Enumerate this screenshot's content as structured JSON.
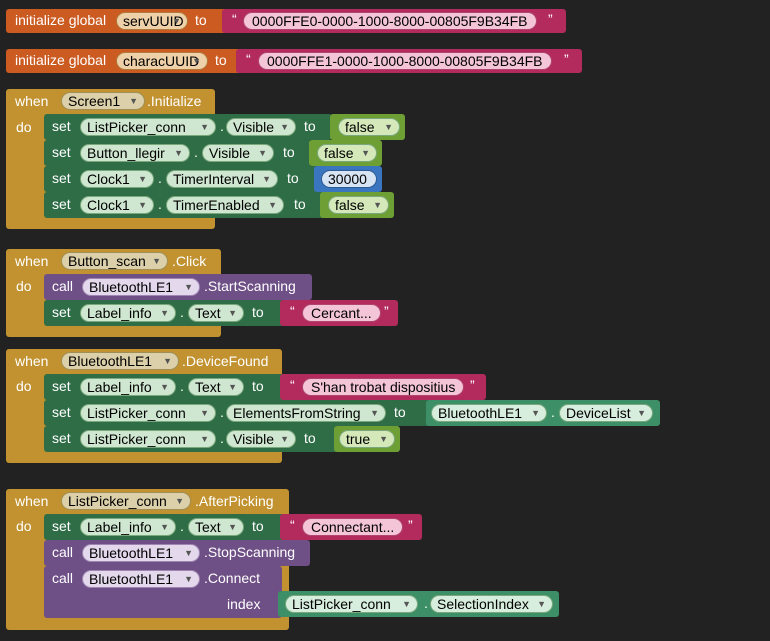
{
  "globals": [
    {
      "keyword": "initialize global",
      "name": "servUUID",
      "to": "to",
      "value": "0000FFE0-0000-1000-8000-00805F9B34FB"
    },
    {
      "keyword": "initialize global",
      "name": "characUUID",
      "to": "to",
      "value": "0000FFE1-0000-1000-8000-00805F9B34FB"
    }
  ],
  "kw": {
    "when": "when",
    "do": "do",
    "set": "set",
    "call": "call",
    "to": "to",
    "dot": ".",
    "index": "index",
    "open_quote": "“",
    "close_quote": "”"
  },
  "events": [
    {
      "component": "Screen1",
      "event": ".Initialize",
      "statements": [
        {
          "component": "ListPicker_conn",
          "prop": "Visible",
          "value": "false"
        },
        {
          "component": "Button_llegir",
          "prop": "Visible",
          "value": "false"
        },
        {
          "component": "Clock1",
          "prop": "TimerInterval",
          "value": "30000"
        },
        {
          "component": "Clock1",
          "prop": "TimerEnabled",
          "value": "false"
        }
      ]
    },
    {
      "component": "Button_scan",
      "event": ".Click",
      "statements": [
        {
          "call_component": "BluetoothLE1",
          "method": ".StartScanning"
        },
        {
          "component": "Label_info",
          "prop": "Text",
          "value": "Cercant..."
        }
      ]
    },
    {
      "component": "BluetoothLE1",
      "event": ".DeviceFound",
      "statements": [
        {
          "component": "Label_info",
          "prop": "Text",
          "value": "S'han trobat dispositius"
        },
        {
          "component": "ListPicker_conn",
          "prop": "ElementsFromString",
          "value_component": "BluetoothLE1",
          "value_prop": "DeviceList"
        },
        {
          "component": "ListPicker_conn",
          "prop": "Visible",
          "value": "true"
        }
      ]
    },
    {
      "component": "ListPicker_conn",
      "event": ".AfterPicking",
      "statements": [
        {
          "component": "Label_info",
          "prop": "Text",
          "value": "Connectant..."
        },
        {
          "call_component": "BluetoothLE1",
          "method": ".StopScanning"
        },
        {
          "call_component": "BluetoothLE1",
          "method": ".Connect",
          "arg_component": "ListPicker_conn",
          "arg_prop": "SelectionIndex"
        }
      ]
    }
  ],
  "colors": {
    "event": "#c1922f",
    "setter": "#2f6d47",
    "call": "#6e4f86",
    "text": "#b22b5c",
    "variable": "#cc5b22",
    "logic": "#6e9f34",
    "math": "#3a76bf",
    "getter": "#3c8f67"
  }
}
